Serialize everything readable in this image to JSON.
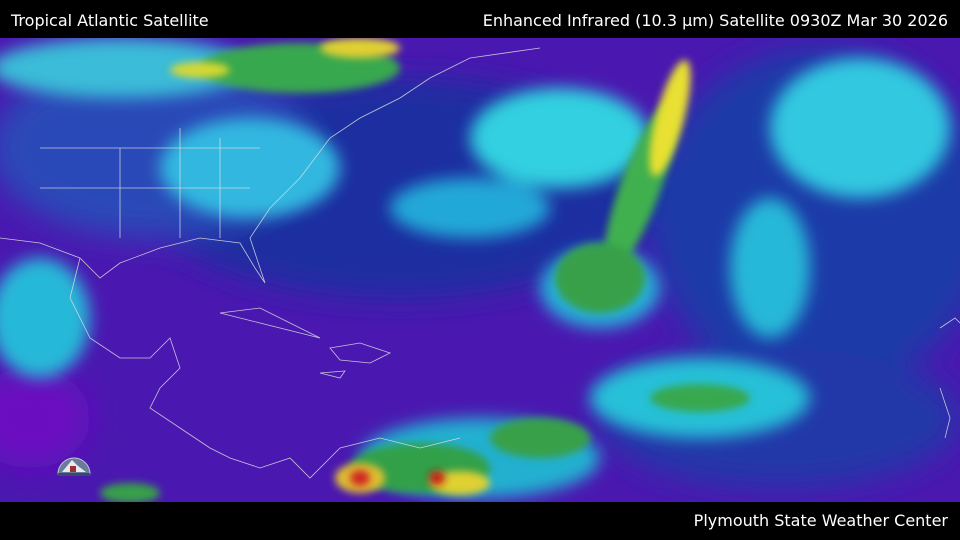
{
  "header": {
    "region_title": "Tropical Atlantic Satellite",
    "product_title": "Enhanced Infrared (10.3 µm) Satellite 0930Z Mar 30 2026"
  },
  "footer": {
    "credit": "Plymouth State Weather Center"
  },
  "map": {
    "type": "satellite-infrared",
    "region": "Tropical Atlantic",
    "colors": {
      "clear_warm": "#5a14b4",
      "ocean_low": "#1a2a9a",
      "low_cloud": "#26c8e0",
      "mid_cloud": "#2aa84a",
      "high_cloud": "#e8e030",
      "very_cold": "#d02020",
      "borders": "#e0e0e0"
    }
  },
  "logo": {
    "name": "plymouth-state-logo"
  }
}
